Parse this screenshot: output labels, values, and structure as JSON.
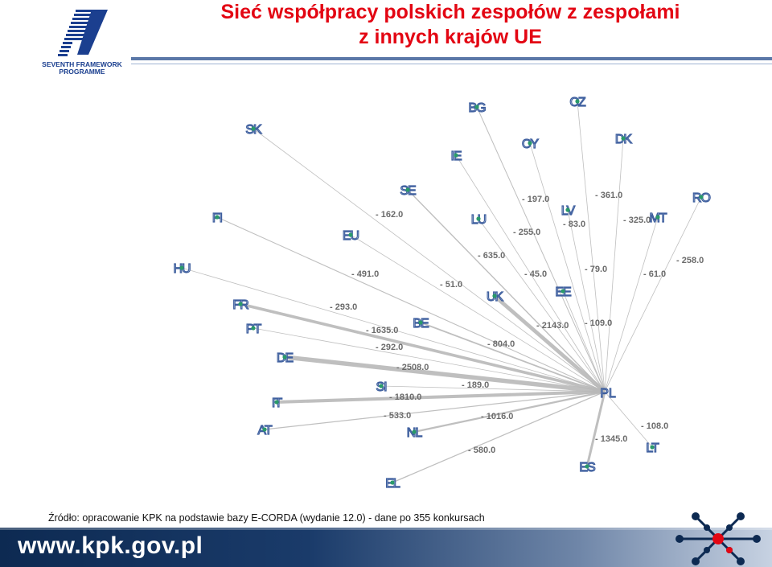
{
  "header": {
    "logo_caption_line1": "SEVENTH FRAMEWORK",
    "logo_caption_line2": "PROGRAMME",
    "title_line1": "Sieć współpracy polskich zespołów z zespołami",
    "title_line2": "z innych krajów UE"
  },
  "network": {
    "hub": "PL",
    "nodes": [
      {
        "code": "BG",
        "weight": null
      },
      {
        "code": "CZ",
        "weight": "- 361.0"
      },
      {
        "code": "SK",
        "weight": "- 162.0"
      },
      {
        "code": "CY",
        "weight": "- 197.0"
      },
      {
        "code": "DK",
        "weight": "- 325.0"
      },
      {
        "code": "IE",
        "weight": "- 255.0"
      },
      {
        "code": "SE",
        "weight": "- 635.0"
      },
      {
        "code": "RO",
        "weight": "- 258.0"
      },
      {
        "code": "FI",
        "weight": "- 491.0"
      },
      {
        "code": "LU",
        "weight": "- 45.0"
      },
      {
        "code": "LV",
        "weight": "- 83.0"
      },
      {
        "code": "MT",
        "weight": "- 61.0"
      },
      {
        "code": "EU",
        "weight": "- 51.0"
      },
      {
        "code": "HU",
        "weight": "- 293.0"
      },
      {
        "code": "EE",
        "weight": "- 79.0"
      },
      {
        "code": "UK",
        "weight": "- 2143.0"
      },
      {
        "code": "FR",
        "weight": "- 1635.0"
      },
      {
        "code": "PT",
        "weight": "- 292.0"
      },
      {
        "code": "BE",
        "weight": "- 804.0"
      },
      {
        "code": "DE",
        "weight": "- 2508.0"
      },
      {
        "code": "SI",
        "weight": "- 189.0"
      },
      {
        "code": "IT",
        "weight": "- 1810.0"
      },
      {
        "code": "AT",
        "weight": "- 533.0"
      },
      {
        "code": "NL",
        "weight": "- 1016.0"
      },
      {
        "code": "EL",
        "weight": "- 580.0"
      },
      {
        "code": "ES",
        "weight": "- 1345.0"
      },
      {
        "code": "LT",
        "weight": "- 108.0"
      },
      {
        "code": "EE_extra",
        "weight": "- 109.0"
      }
    ]
  },
  "footer": {
    "source": "Źródło: opracowanie KPK na podstawie bazy E-CORDA (wydanie 12.0) - dane po 355 konkursach",
    "url": "www.kpk.gov.pl"
  },
  "colors": {
    "title": "#e30613",
    "edge": "#b8b8b8",
    "node_dot": "#2a9a6a",
    "label": "#3d5e9e",
    "footer": "#1a3b6a"
  }
}
